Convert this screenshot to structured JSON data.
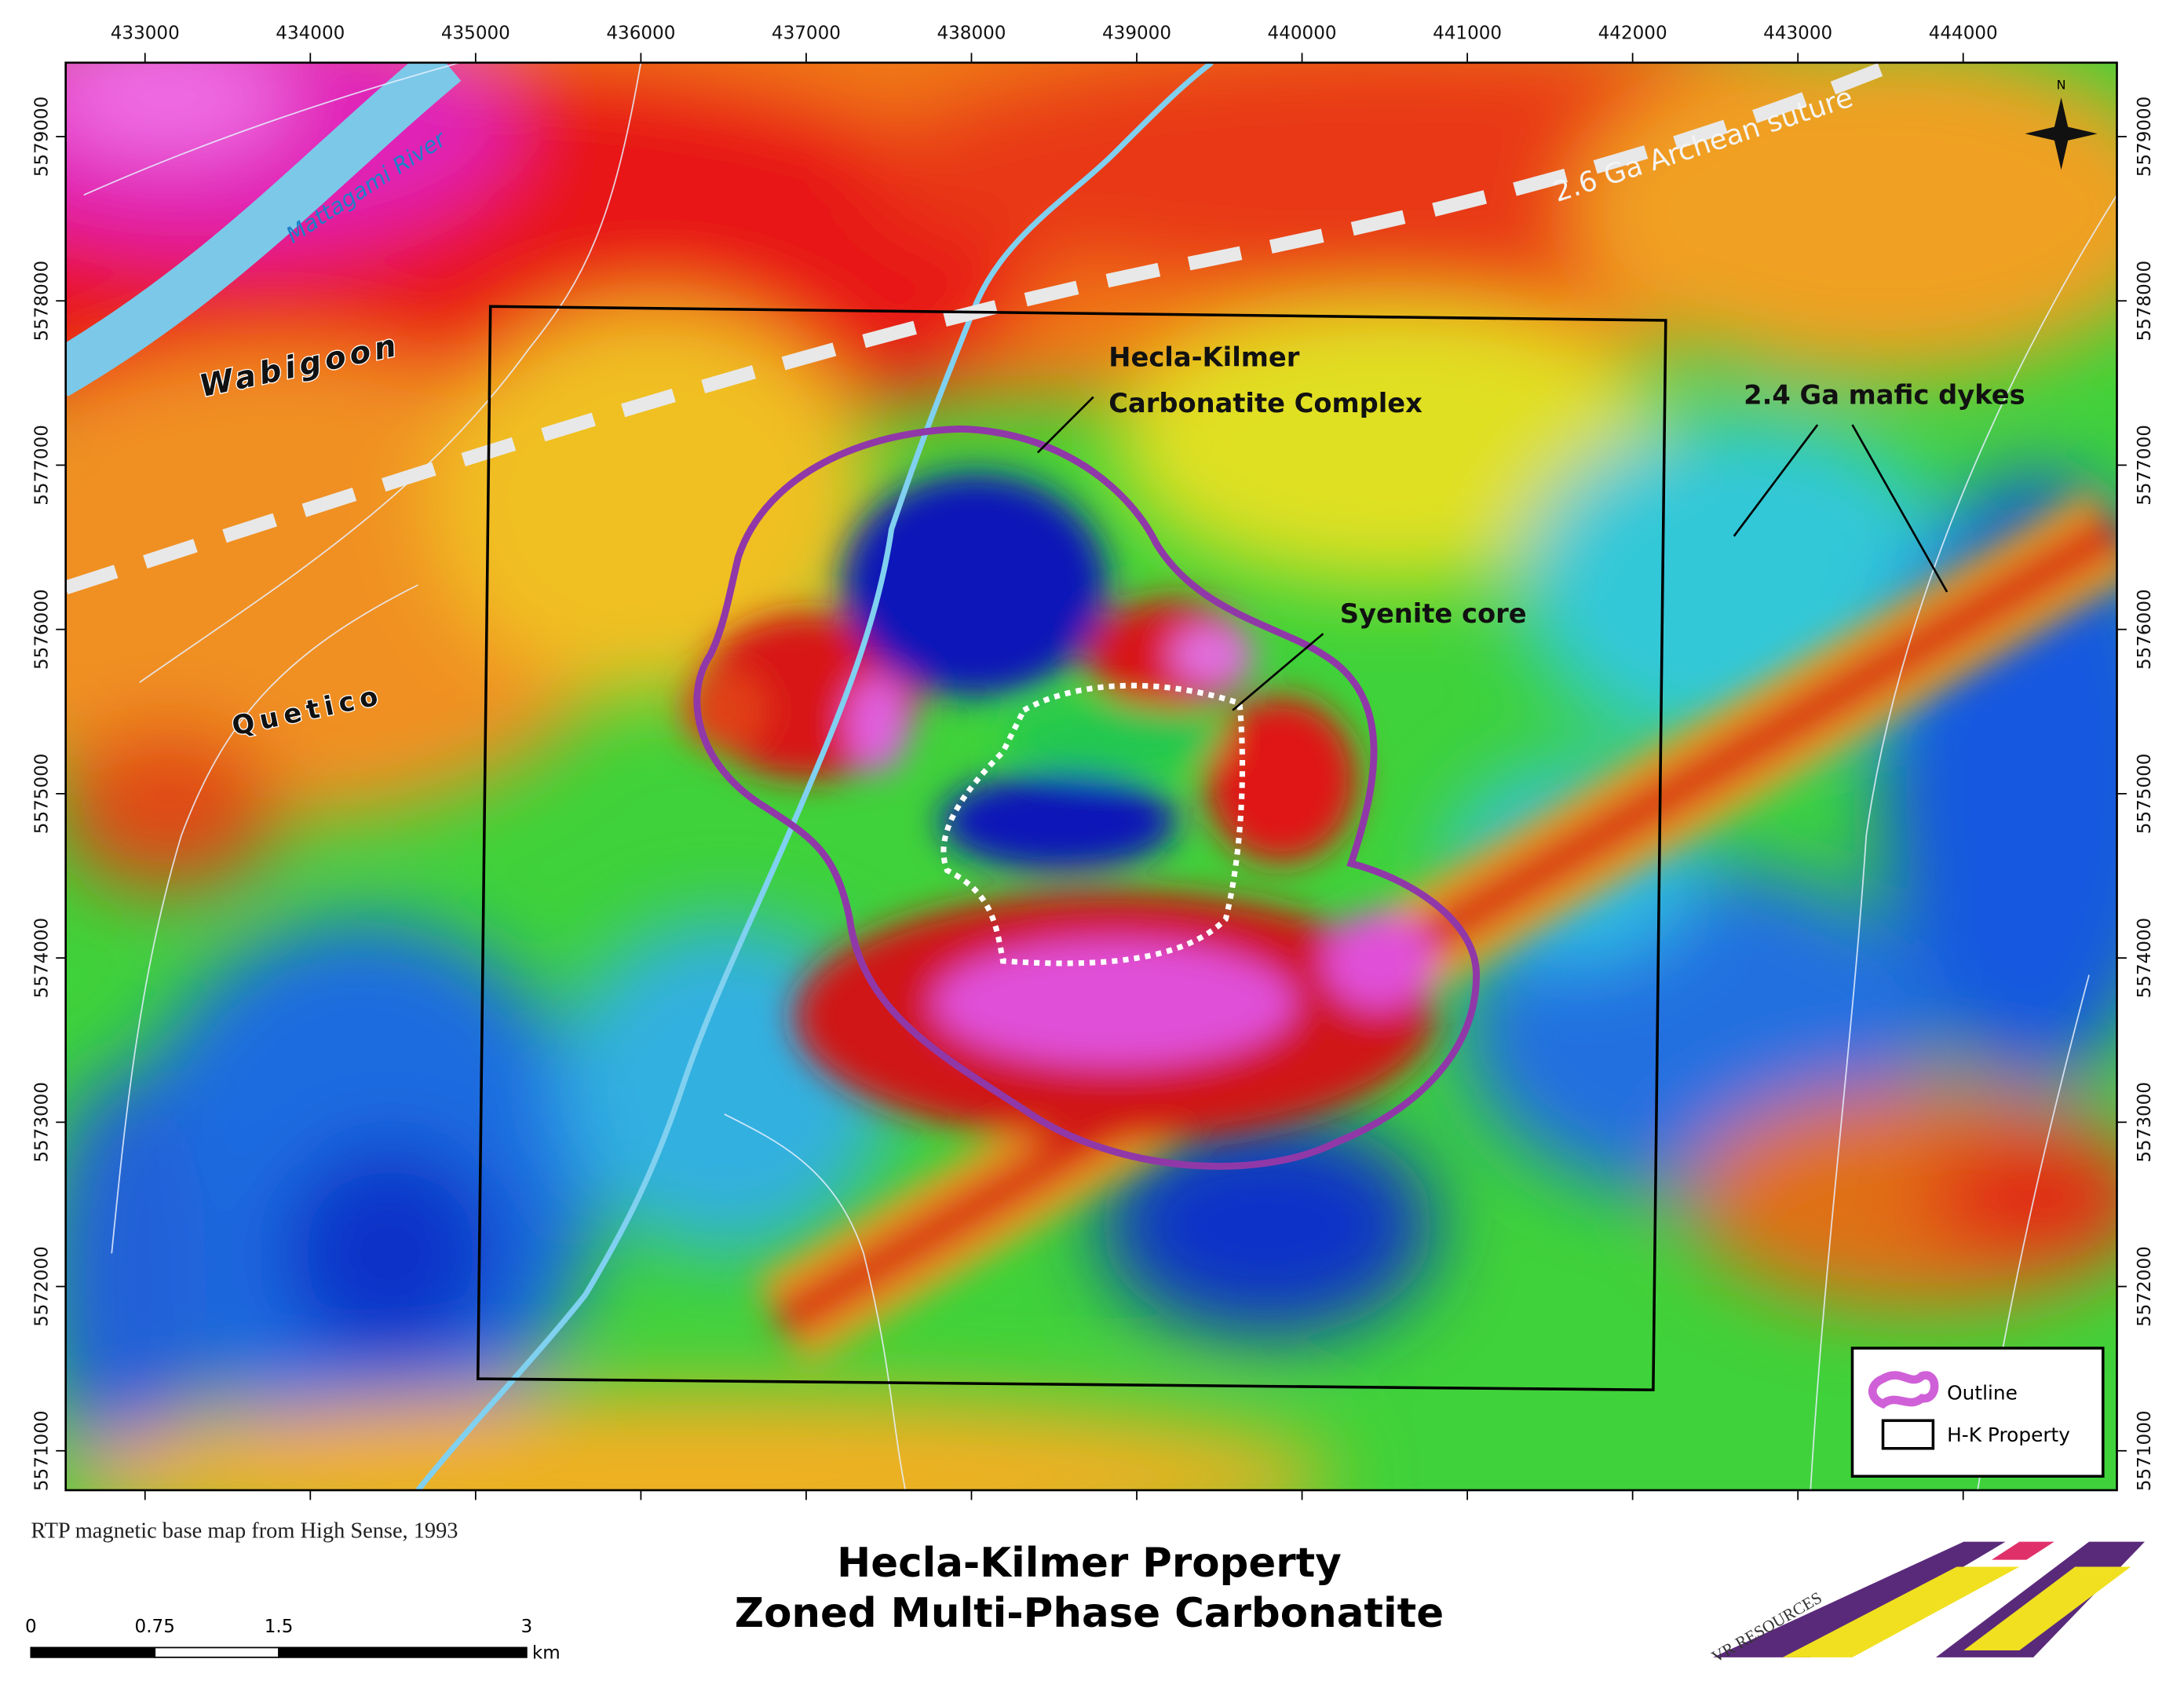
{
  "map": {
    "title": [
      "Hecla-Kilmer Property",
      "Zoned Multi-Phase Carbonatite"
    ],
    "credit": "RTP magnetic base map from High Sense, 1993",
    "xlim": [
      432520,
      444930
    ],
    "ylim": [
      5570760,
      5579450
    ],
    "xticks": [
      433000,
      434000,
      435000,
      436000,
      437000,
      438000,
      439000,
      440000,
      441000,
      442000,
      443000,
      444000
    ],
    "yticks": [
      5571000,
      5572000,
      5573000,
      5574000,
      5575000,
      5576000,
      5577000,
      5578000,
      5579000
    ],
    "labels": {
      "river": "Mattagami River",
      "wabigoon": "Wabigoon",
      "quetico": "Quetico",
      "suture": "2.6 Ga Archean suture",
      "complex": [
        "Hecla-Kilmer",
        "Carbonatite Complex"
      ],
      "core": "Syenite core",
      "dykes": "2.4 Ga mafic dykes",
      "north": "N"
    },
    "legend": [
      "Outline",
      "H-K Property"
    ],
    "scale_bar": {
      "ticks": [
        0,
        0.75,
        1.5,
        3
      ],
      "unit": "km"
    },
    "logo": "VR RESOURCES"
  }
}
